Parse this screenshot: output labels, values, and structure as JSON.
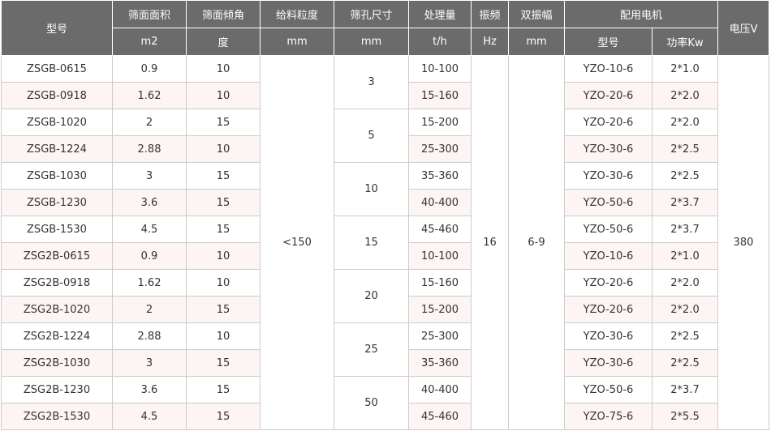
{
  "table": {
    "header_row1": [
      "型号",
      "筛面面积",
      "筛面倾角",
      "给料粒度",
      "筛孔尺寸",
      "处理量",
      "振频",
      "双振幅",
      "配用电机",
      "电压V"
    ],
    "header_row2": [
      "m2",
      "度",
      "mm",
      "mm",
      "t/h",
      "Hz",
      "mm",
      "型号",
      "功率Kw"
    ],
    "rows": [
      [
        "ZSGB-0615",
        "0.9",
        "10",
        "10-100",
        "YZO-10-6",
        "2*1.0"
      ],
      [
        "ZSGB-0918",
        "1.62",
        "10",
        "15-160",
        "YZO-20-6",
        "2*2.0"
      ],
      [
        "ZSGB-1020",
        "2",
        "15",
        "15-200",
        "YZO-20-6",
        "2*2.0"
      ],
      [
        "ZSGB-1224",
        "2.88",
        "10",
        "25-300",
        "YZO-30-6",
        "2*2.5"
      ],
      [
        "ZSGB-1030",
        "3",
        "15",
        "35-360",
        "YZO-30-6",
        "2*2.5"
      ],
      [
        "ZSGB-1230",
        "3.6",
        "15",
        "40-400",
        "YZO-50-6",
        "2*3.7"
      ],
      [
        "ZSGB-1530",
        "4.5",
        "15",
        "45-460",
        "YZO-50-6",
        "2*3.7"
      ],
      [
        "ZSG2B-0615",
        "0.9",
        "10",
        "10-100",
        "YZO-10-6",
        "2*1.0"
      ],
      [
        "ZSG2B-0918",
        "1.62",
        "10",
        "15-160",
        "YZO-20-6",
        "2*2.0"
      ],
      [
        "ZSG2B-1020",
        "2",
        "15",
        "15-200",
        "YZO-20-6",
        "2*2.0"
      ],
      [
        "ZSG2B-1224",
        "2.88",
        "10",
        "25-300",
        "YZO-30-6",
        "2*2.5"
      ],
      [
        "ZSG2B-1030",
        "3",
        "15",
        "35-360",
        "YZO-30-6",
        "2*2.5"
      ],
      [
        "ZSG2B-1230",
        "3.6",
        "15",
        "40-400",
        "YZO-50-6",
        "2*3.7"
      ],
      [
        "ZSG2B-1530",
        "4.5",
        "15",
        "45-460",
        "YZO-75-6",
        "2*5.5"
      ]
    ],
    "feed_size": "<150",
    "mesh_sizes": [
      "3",
      "5",
      "10",
      "15",
      "20",
      "25",
      "50"
    ],
    "frequency": "16",
    "amplitude": "6-9",
    "voltage": "380"
  }
}
